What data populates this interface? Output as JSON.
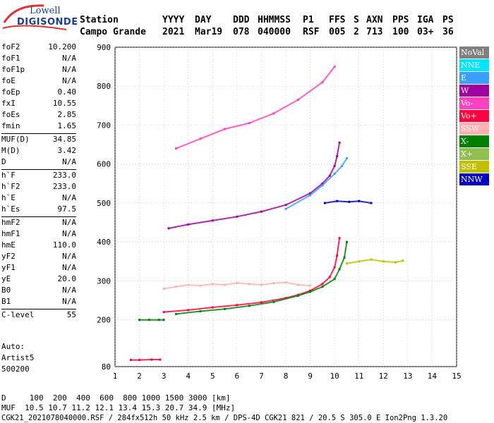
{
  "logo": {
    "line1": "Lowell",
    "line2": "DIGISONDE"
  },
  "header": {
    "labels": [
      "Station",
      "YYYY",
      "DAY",
      "DDD",
      "HHMMSS",
      "P1",
      "FFS",
      "S",
      "AXN",
      "PPS",
      "IGA",
      "PS"
    ],
    "values": [
      "Campo Grande",
      "2021",
      "Mar19",
      "078",
      "040000",
      "RSF",
      "005",
      "2",
      "713",
      "100",
      "03+",
      "36"
    ]
  },
  "params": [
    {
      "group": [
        {
          "name": "foF2",
          "value": "10.200"
        },
        {
          "name": "foF1",
          "value": "N/A"
        },
        {
          "name": "foF1p",
          "value": "N/A"
        },
        {
          "name": "foE",
          "value": "N/A"
        },
        {
          "name": "foEp",
          "value": "0.40"
        },
        {
          "name": "fxI",
          "value": "10.55"
        },
        {
          "name": "foEs",
          "value": "2.85"
        },
        {
          "name": "fmin",
          "value": "1.65"
        }
      ]
    },
    {
      "group": [
        {
          "name": "MUF(D)",
          "value": "34.85"
        },
        {
          "name": "M(D)",
          "value": "3.42"
        },
        {
          "name": "D",
          "value": "N/A"
        }
      ]
    },
    {
      "group": [
        {
          "name": "h`F",
          "value": "233.0"
        },
        {
          "name": "h`F2",
          "value": "233.0"
        },
        {
          "name": "h`E",
          "value": "N/A"
        },
        {
          "name": "h`Es",
          "value": "97.5"
        }
      ]
    },
    {
      "group": [
        {
          "name": "hmF2",
          "value": "N/A"
        },
        {
          "name": "hmF1",
          "value": "N/A"
        },
        {
          "name": "hmE",
          "value": "110.0"
        },
        {
          "name": "yF2",
          "value": "N/A"
        },
        {
          "name": "yF1",
          "value": "N/A"
        },
        {
          "name": "yE",
          "value": "20.0"
        },
        {
          "name": "B0",
          "value": "N/A"
        },
        {
          "name": "B1",
          "value": "N/A"
        }
      ]
    },
    {
      "group": [
        {
          "name": "C-level",
          "value": "55"
        }
      ]
    }
  ],
  "auto": {
    "line1": "Auto:",
    "line2": "Artist5",
    "line3": "500200"
  },
  "legend": [
    {
      "label": "NoVal",
      "color": "#808080"
    },
    {
      "label": "NNE",
      "color": "#00e5ff"
    },
    {
      "label": "E",
      "color": "#3aa0ff"
    },
    {
      "label": "W",
      "color": "#a000a0"
    },
    {
      "label": "Vo-",
      "color": "#ff40c0"
    },
    {
      "label": "Vo+",
      "color": "#ff0040"
    },
    {
      "label": "SSW",
      "color": "#ffb0b0"
    },
    {
      "label": "X-",
      "color": "#008000"
    },
    {
      "label": "X+",
      "color": "#90c050"
    },
    {
      "label": "SSE",
      "color": "#c0c000"
    },
    {
      "label": "NNW",
      "color": "#0000c0"
    }
  ],
  "footer": {
    "d_row": "D     100  200  400  600  800 1000 1500 3000 [km]",
    "muf_row": "MUF  10.5 10.7 11.2 12.1 13.4 15.3 20.7 34.9 [MHz]",
    "info_row": "CGK21_2021078040000.RSF / 284fx512h 50 kHz 2.5 km / DPS-4D CGK21 821 / 20.5 S 305.0 E Ion2Png 1.3.20"
  },
  "chart_data": {
    "type": "scatter",
    "xlim": [
      1,
      15
    ],
    "ylim": [
      80,
      900
    ],
    "xticks": [
      "1",
      "2",
      "3",
      "4",
      "5",
      "6",
      "7",
      "8",
      "9",
      "10",
      "11",
      "12",
      "13",
      "14",
      "15"
    ],
    "yticks": [
      "80",
      "200",
      "300",
      "400",
      "500",
      "600",
      "700",
      "800",
      "900"
    ],
    "grid": true,
    "series": [
      {
        "name": "Vo+",
        "trace": "O-mode F trace",
        "x": [
          3.0,
          4,
          5,
          6,
          7,
          8,
          8.5,
          9,
          9.5,
          9.8,
          10,
          10.1,
          10.2
        ],
        "y": [
          220,
          225,
          232,
          238,
          245,
          256,
          264,
          275,
          292,
          310,
          335,
          365,
          410
        ]
      },
      {
        "name": "X-",
        "trace": "X-mode F trace",
        "x": [
          3.5,
          4.5,
          5.5,
          6.5,
          7.5,
          8.5,
          9,
          9.5,
          10,
          10.2,
          10.4,
          10.5
        ],
        "y": [
          215,
          222,
          228,
          236,
          246,
          262,
          272,
          285,
          305,
          330,
          360,
          400
        ]
      },
      {
        "name": "W",
        "trace": "second hop",
        "x": [
          3.2,
          4,
          5,
          6,
          7,
          8,
          9,
          9.5,
          9.8,
          10,
          10.1,
          10.2
        ],
        "y": [
          435,
          445,
          455,
          465,
          478,
          495,
          525,
          550,
          570,
          595,
          620,
          655
        ]
      },
      {
        "name": "E",
        "trace": "second hop X",
        "x": [
          8,
          9,
          9.5,
          10,
          10.3,
          10.5
        ],
        "y": [
          485,
          520,
          545,
          575,
          595,
          615
        ]
      },
      {
        "name": "Vo-",
        "trace": "third hop",
        "x": [
          3.5,
          4.5,
          5.5,
          6.5,
          7.5,
          8.5,
          9.5,
          10
        ],
        "y": [
          640,
          665,
          690,
          705,
          730,
          765,
          810,
          850
        ]
      },
      {
        "name": "SSE",
        "trace": "off-vertical",
        "x": [
          10.5,
          11,
          11.5,
          12,
          12.5,
          12.8
        ],
        "y": [
          345,
          350,
          355,
          350,
          348,
          352
        ]
      },
      {
        "name": "NNW",
        "trace": "off-vertical",
        "x": [
          9.6,
          10.1,
          10.6,
          11,
          11.5
        ],
        "y": [
          500,
          505,
          503,
          505,
          500
        ]
      },
      {
        "name": "SSW",
        "trace": "spread F",
        "x": [
          3,
          3.5,
          4,
          4.5,
          5,
          5.5,
          6,
          6.5,
          7,
          7.5,
          8,
          8.5,
          9
        ],
        "y": [
          280,
          285,
          290,
          288,
          292,
          290,
          295,
          292,
          290,
          294,
          296,
          290,
          288
        ]
      },
      {
        "name": "Vo+",
        "trace": "Es",
        "x": [
          1.65,
          2,
          2.5,
          2.85
        ],
        "y": [
          97,
          97,
          98,
          98
        ]
      },
      {
        "name": "X-",
        "trace": "Es",
        "x": [
          2,
          2.4,
          2.8,
          3.0
        ],
        "y": [
          200,
          200,
          200,
          200
        ]
      }
    ]
  }
}
